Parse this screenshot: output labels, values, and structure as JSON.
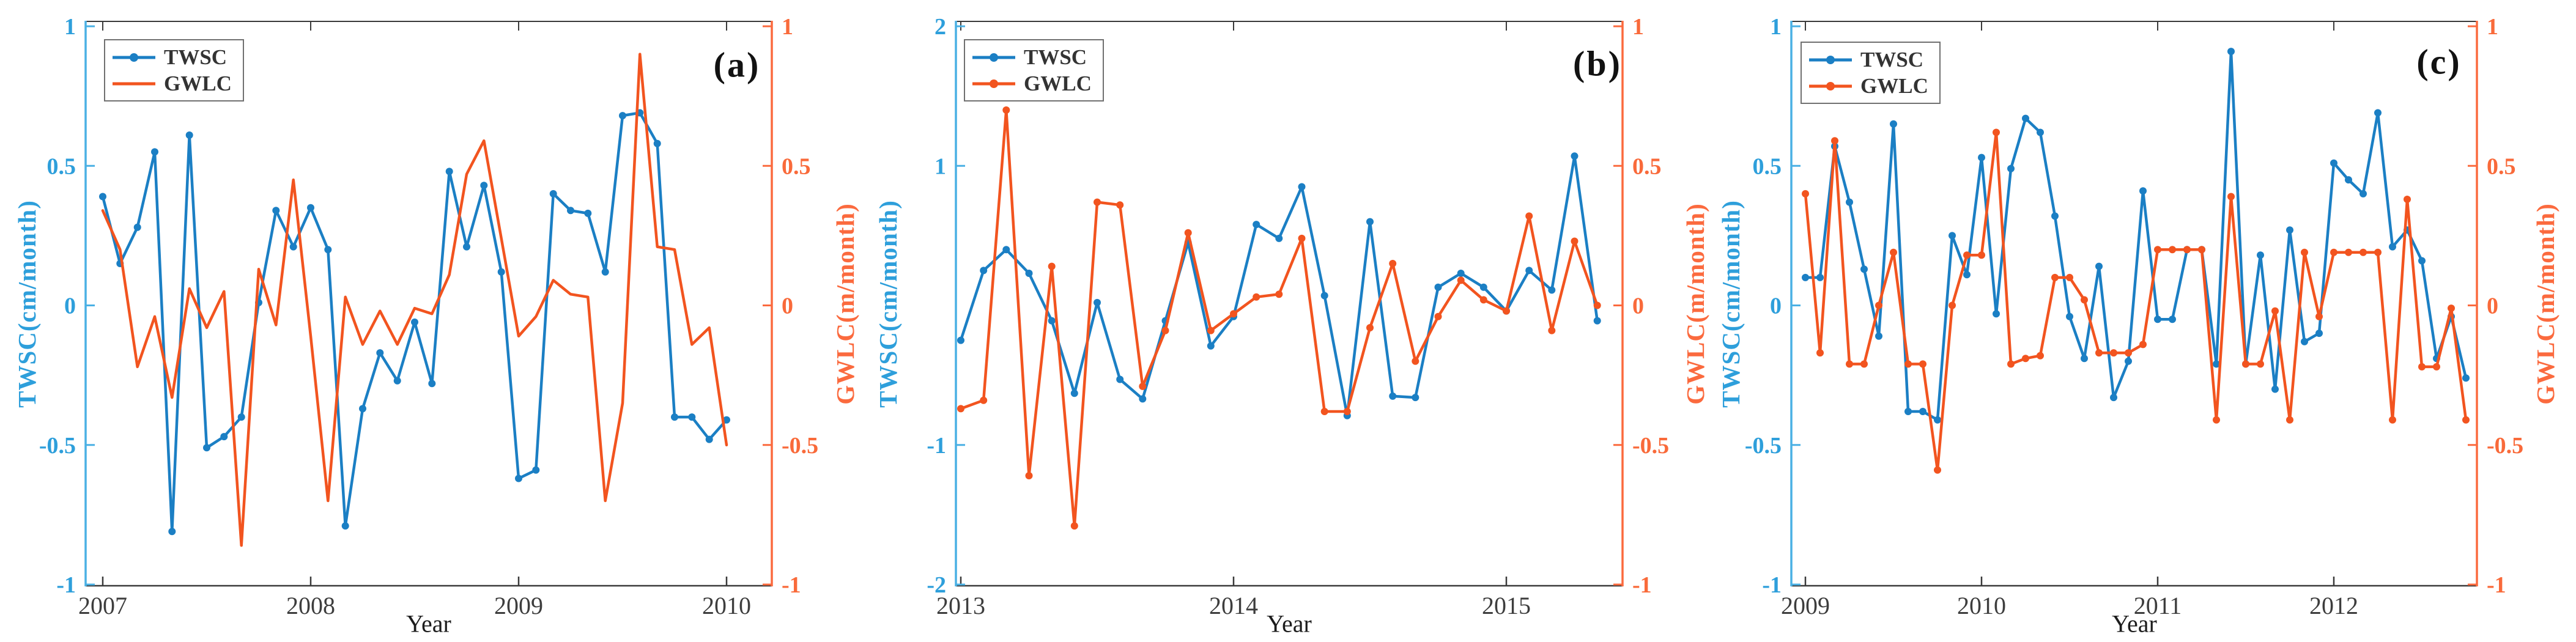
{
  "colors": {
    "twsc": "#1b7fc4",
    "gwlc": "#f2541f",
    "left_spine": "#4ab0e4",
    "left_tick_text": "#2e9fdb",
    "right_spine": "#fb6a3e",
    "right_tick_text": "#f96a3a",
    "frame": "#3a3a3a",
    "x_tick_text": "#3d3d3d",
    "legend_text": "#333333",
    "legend_border": "#707070",
    "tag_text": "#121212"
  },
  "chart_data": [
    {
      "type": "line",
      "tag": "(a)",
      "xlabel": "Year",
      "legend_position": "top-left-inside",
      "grid": false,
      "start_year": 2007.0,
      "x_step_years": 0.08333,
      "x_ticks": {
        "values": [
          2007,
          2008,
          2009,
          2010
        ],
        "labels": [
          "2007",
          "2008",
          "2009",
          "2010"
        ]
      },
      "left_axis": {
        "label": "TWSC(cm/month)",
        "min": -1,
        "max": 1,
        "ticks": {
          "values": [
            1,
            0.5,
            0,
            -0.5,
            -1
          ],
          "labels": [
            "1",
            "0.5",
            "0",
            "-0.5",
            "-1"
          ]
        }
      },
      "right_axis": {
        "label": "GWLC(m/month)",
        "min": -1,
        "max": 1,
        "ticks": {
          "values": [
            1,
            0.5,
            0,
            -0.5,
            -1
          ],
          "labels": [
            "1",
            "0.5",
            "0",
            "-0.5",
            "-1"
          ]
        }
      },
      "series": [
        {
          "name": "TWSC",
          "key": "twsc",
          "axis": "left",
          "markers": true,
          "values": [
            0.39,
            0.15,
            0.28,
            0.55,
            -0.81,
            0.61,
            -0.51,
            -0.47,
            -0.4,
            0.01,
            0.34,
            0.21,
            0.35,
            0.2,
            -0.79,
            -0.37,
            -0.17,
            -0.27,
            -0.06,
            -0.28,
            0.48,
            0.21,
            0.43,
            0.12,
            -0.62,
            -0.59,
            0.4,
            0.34,
            0.33,
            0.12,
            0.68,
            0.69,
            0.58,
            -0.4,
            -0.4,
            -0.48,
            -0.41
          ]
        },
        {
          "name": "GWLC",
          "key": "gwlc",
          "axis": "right",
          "markers": false,
          "values": [
            0.34,
            0.2,
            -0.22,
            -0.04,
            -0.33,
            0.06,
            -0.08,
            0.05,
            -0.86,
            0.13,
            -0.07,
            0.45,
            -0.11,
            -0.7,
            0.03,
            -0.14,
            -0.02,
            -0.14,
            -0.01,
            -0.03,
            0.11,
            0.47,
            0.59,
            0.24,
            -0.11,
            -0.04,
            0.09,
            0.04,
            0.03,
            -0.7,
            -0.35,
            0.9,
            0.21,
            0.2,
            -0.14,
            -0.08,
            -0.5
          ]
        }
      ]
    },
    {
      "type": "line",
      "tag": "(b)",
      "xlabel": "Year",
      "legend_position": "top-left-inside",
      "grid": false,
      "start_year": 2013.0,
      "x_step_years": 0.08333,
      "x_ticks": {
        "values": [
          2013,
          2014,
          2015
        ],
        "labels": [
          "2013",
          "2014",
          "2015"
        ]
      },
      "left_axis": {
        "label": "TWSC(cm/month)",
        "min": -2,
        "max": 2,
        "ticks": {
          "values": [
            2,
            1,
            -1,
            -2
          ],
          "labels": [
            "2",
            "1",
            "-1",
            "-2"
          ]
        }
      },
      "right_axis": {
        "label": "GWLC(m/month)",
        "min": -1,
        "max": 1,
        "ticks": {
          "values": [
            1,
            0.5,
            0,
            -0.5,
            -1
          ],
          "labels": [
            "1",
            "0.5",
            "0",
            "-0.5",
            "-1"
          ]
        }
      },
      "series": [
        {
          "name": "TWSC",
          "key": "twsc",
          "axis": "left",
          "markers": true,
          "values": [
            -0.25,
            0.25,
            0.4,
            0.23,
            -0.11,
            -0.63,
            0.02,
            -0.53,
            -0.67,
            -0.11,
            0.45,
            -0.29,
            -0.08,
            0.58,
            0.48,
            0.85,
            0.07,
            -0.79,
            0.6,
            -0.65,
            -0.66,
            0.13,
            0.23,
            0.13,
            -0.04,
            0.25,
            0.11,
            1.07,
            -0.11
          ]
        },
        {
          "name": "GWLC",
          "key": "gwlc",
          "axis": "right",
          "markers": true,
          "values": [
            -0.37,
            -0.34,
            0.7,
            -0.61,
            0.14,
            -0.79,
            0.37,
            0.36,
            -0.29,
            -0.09,
            0.26,
            -0.09,
            -0.03,
            0.03,
            0.04,
            0.24,
            -0.38,
            -0.38,
            -0.08,
            0.15,
            -0.2,
            -0.04,
            0.09,
            0.02,
            -0.02,
            0.32,
            -0.09,
            0.23,
            0.0
          ]
        }
      ]
    },
    {
      "type": "line",
      "tag": "(c)",
      "xlabel": "Year",
      "legend_position": "top-left-inside",
      "grid": false,
      "start_year": 2009.0,
      "x_step_years": 0.08333,
      "x_ticks": {
        "values": [
          2009,
          2010,
          2011,
          2012
        ],
        "labels": [
          "2009",
          "2010",
          "2011",
          "2012"
        ]
      },
      "left_axis": {
        "label": "TWSC(cm/month)",
        "min": -1,
        "max": 1,
        "ticks": {
          "values": [
            1,
            0.5,
            0,
            -0.5,
            -1
          ],
          "labels": [
            "1",
            "0.5",
            "0",
            "-0.5",
            "-1"
          ]
        }
      },
      "right_axis": {
        "label": "GWLC(m/month)",
        "min": -1,
        "max": 1,
        "ticks": {
          "values": [
            1,
            0.5,
            0,
            -0.5,
            -1
          ],
          "labels": [
            "1",
            "0.5",
            "0",
            "-0.5",
            "-1"
          ]
        }
      },
      "series": [
        {
          "name": "TWSC",
          "key": "twsc",
          "axis": "left",
          "markers": true,
          "values": [
            0.1,
            0.1,
            0.57,
            0.37,
            0.13,
            -0.11,
            0.65,
            -0.38,
            -0.38,
            -0.41,
            0.25,
            0.11,
            0.53,
            -0.03,
            0.49,
            0.67,
            0.62,
            0.32,
            -0.04,
            -0.19,
            0.14,
            -0.33,
            -0.2,
            0.41,
            -0.05,
            -0.05,
            0.2,
            0.2,
            -0.21,
            0.91,
            -0.21,
            0.18,
            -0.3,
            0.27,
            -0.13,
            -0.1,
            0.51,
            0.45,
            0.4,
            0.69,
            0.21,
            0.27,
            0.16,
            -0.19,
            -0.04,
            -0.26
          ]
        },
        {
          "name": "GWLC",
          "key": "gwlc",
          "axis": "right",
          "markers": true,
          "values": [
            0.4,
            -0.17,
            0.59,
            -0.21,
            -0.21,
            0.0,
            0.19,
            -0.21,
            -0.21,
            -0.59,
            0.0,
            0.18,
            0.18,
            0.62,
            -0.21,
            -0.19,
            -0.18,
            0.1,
            0.1,
            0.02,
            -0.17,
            -0.17,
            -0.17,
            -0.14,
            0.2,
            0.2,
            0.2,
            0.2,
            -0.41,
            0.39,
            -0.21,
            -0.21,
            -0.02,
            -0.41,
            0.19,
            -0.04,
            0.19,
            0.19,
            0.19,
            0.19,
            -0.41,
            0.38,
            -0.22,
            -0.22,
            -0.01,
            -0.41
          ]
        }
      ]
    }
  ]
}
